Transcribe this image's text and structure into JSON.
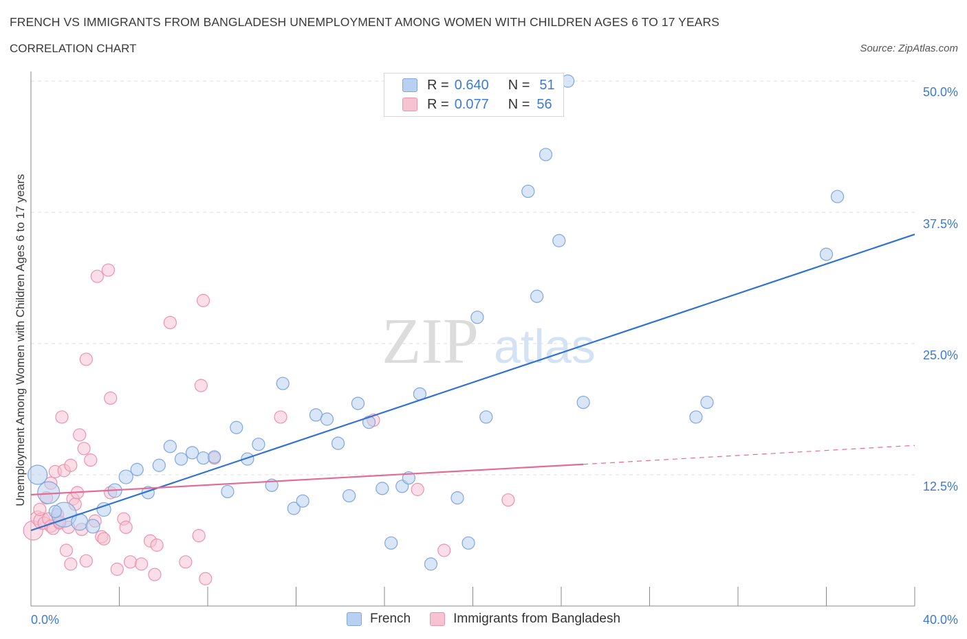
{
  "header": {
    "title": "FRENCH VS IMMIGRANTS FROM BANGLADESH UNEMPLOYMENT AMONG WOMEN WITH CHILDREN AGES 6 TO 17 YEARS",
    "subtitle": "CORRELATION CHART",
    "source": "Source: ZipAtlas.com"
  },
  "watermark": {
    "zip": "ZIP",
    "atlas": "atlas"
  },
  "legend": {
    "french": {
      "r_label": "R =",
      "r_value": "0.640",
      "n_label": "N =",
      "n_value": "51"
    },
    "bangladesh": {
      "r_label": "R =",
      "r_value": "0.077",
      "n_label": "N =",
      "n_value": "56"
    }
  },
  "bottom_legend": {
    "french": "French",
    "bangladesh": "Immigrants from Bangladesh"
  },
  "colors": {
    "french_fill": "#b8d1f3",
    "french_stroke": "#7fa6de",
    "french_line": "#2f72cf",
    "bd_fill": "#f7c3d3",
    "bd_stroke": "#eb93ae",
    "bd_line": "#e56b95",
    "grid": "#dddddd",
    "tick_text": "#3d7bd0"
  },
  "chart_data": {
    "type": "scatter",
    "title": "FRENCH VS IMMIGRANTS FROM BANGLADESH UNEMPLOYMENT AMONG WOMEN WITH CHILDREN AGES 6 TO 17 YEARS",
    "xlabel": "",
    "ylabel": "Unemployment Among Women with Children Ages 6 to 17 years",
    "xlim": [
      0,
      40
    ],
    "ylim": [
      0,
      50
    ],
    "x_tick_labels": [
      "0.0%",
      "40.0%"
    ],
    "y_ticks": [
      12.5,
      25.0,
      37.5,
      50.0
    ],
    "y_tick_labels": [
      "12.5%",
      "25.0%",
      "37.5%",
      "50.0%"
    ],
    "grid": true,
    "legend_position": "top-center",
    "series": [
      {
        "name": "French",
        "r": 0.64,
        "n": 51,
        "trend": {
          "x": [
            0,
            40
          ],
          "y": [
            7.2,
            35.4
          ],
          "dashed_from": null
        },
        "points": [
          [
            0.3,
            12.5,
            14
          ],
          [
            0.8,
            10.8,
            16
          ],
          [
            1.5,
            8.7,
            18
          ],
          [
            2.2,
            8.0,
            12
          ],
          [
            2.8,
            7.6,
            10
          ],
          [
            3.3,
            9.2,
            10
          ],
          [
            3.8,
            11.0,
            10
          ],
          [
            4.3,
            12.3,
            10
          ],
          [
            4.8,
            13.0,
            9
          ],
          [
            5.3,
            10.8,
            9
          ],
          [
            5.8,
            13.4,
            9
          ],
          [
            6.3,
            15.2,
            9
          ],
          [
            6.8,
            14.0,
            9
          ],
          [
            7.3,
            14.6,
            9
          ],
          [
            7.8,
            14.1,
            9
          ],
          [
            8.3,
            14.2,
            9
          ],
          [
            8.9,
            10.9,
            9
          ],
          [
            9.3,
            17.0,
            9
          ],
          [
            9.8,
            14.0,
            9
          ],
          [
            10.3,
            15.4,
            9
          ],
          [
            10.9,
            11.5,
            9
          ],
          [
            11.4,
            21.2,
            9
          ],
          [
            11.9,
            9.3,
            9
          ],
          [
            12.3,
            10.0,
            9
          ],
          [
            12.9,
            18.2,
            9
          ],
          [
            13.4,
            17.8,
            9
          ],
          [
            13.9,
            15.5,
            9
          ],
          [
            14.4,
            10.5,
            9
          ],
          [
            14.8,
            19.3,
            9
          ],
          [
            15.3,
            17.5,
            9
          ],
          [
            15.9,
            11.2,
            9
          ],
          [
            16.3,
            6.0,
            9
          ],
          [
            16.8,
            11.4,
            9
          ],
          [
            17.1,
            12.2,
            9
          ],
          [
            17.6,
            20.2,
            9
          ],
          [
            18.1,
            4.0,
            9
          ],
          [
            19.3,
            10.3,
            9
          ],
          [
            19.8,
            6.0,
            9
          ],
          [
            20.2,
            27.5,
            9
          ],
          [
            20.6,
            18.0,
            9
          ],
          [
            22.5,
            39.5,
            9
          ],
          [
            22.9,
            29.5,
            9
          ],
          [
            23.3,
            43.0,
            9
          ],
          [
            23.9,
            34.8,
            9
          ],
          [
            24.3,
            50.0,
            9
          ],
          [
            25.0,
            19.4,
            9
          ],
          [
            30.1,
            18.0,
            9
          ],
          [
            30.6,
            19.4,
            9
          ],
          [
            36.0,
            33.5,
            9
          ],
          [
            36.5,
            39.0,
            9
          ],
          [
            1.1,
            9.0,
            9
          ]
        ]
      },
      {
        "name": "Immigrants from Bangladesh",
        "r": 0.077,
        "n": 56,
        "trend": {
          "x": [
            0,
            25,
            40
          ],
          "y": [
            10.6,
            13.5,
            15.3
          ],
          "dashed_from": 25
        },
        "points": [
          [
            0.1,
            7.2,
            14
          ],
          [
            0.3,
            8.4,
            10
          ],
          [
            0.5,
            8.1,
            12
          ],
          [
            0.6,
            7.9,
            9
          ],
          [
            0.7,
            10.3,
            9
          ],
          [
            0.8,
            8.3,
            9
          ],
          [
            0.9,
            7.6,
            9
          ],
          [
            1.0,
            7.4,
            9
          ],
          [
            1.1,
            12.8,
            9
          ],
          [
            1.2,
            8.7,
            9
          ],
          [
            1.3,
            7.9,
            9
          ],
          [
            1.4,
            18.0,
            9
          ],
          [
            1.5,
            12.9,
            9
          ],
          [
            1.6,
            5.3,
            9
          ],
          [
            1.7,
            7.5,
            9
          ],
          [
            1.8,
            13.4,
            9
          ],
          [
            1.8,
            4.0,
            9
          ],
          [
            1.9,
            10.2,
            9
          ],
          [
            2.0,
            9.7,
            9
          ],
          [
            2.1,
            10.8,
            9
          ],
          [
            2.2,
            16.3,
            9
          ],
          [
            2.3,
            7.3,
            9
          ],
          [
            2.4,
            15.0,
            9
          ],
          [
            2.5,
            23.5,
            9
          ],
          [
            2.5,
            4.3,
            9
          ],
          [
            2.7,
            13.9,
            9
          ],
          [
            3.0,
            31.4,
            9
          ],
          [
            3.2,
            6.6,
            9
          ],
          [
            3.3,
            6.4,
            9
          ],
          [
            3.5,
            32.0,
            9
          ],
          [
            3.6,
            10.8,
            9
          ],
          [
            3.6,
            19.8,
            9
          ],
          [
            3.9,
            3.5,
            9
          ],
          [
            4.2,
            8.3,
            9
          ],
          [
            4.3,
            7.5,
            9
          ],
          [
            4.5,
            4.2,
            9
          ],
          [
            5.0,
            4.0,
            9
          ],
          [
            5.4,
            6.2,
            9
          ],
          [
            5.6,
            3.0,
            9
          ],
          [
            5.7,
            5.8,
            9
          ],
          [
            6.3,
            27.0,
            9
          ],
          [
            7.0,
            4.2,
            9
          ],
          [
            7.6,
            6.7,
            9
          ],
          [
            7.7,
            21.0,
            9
          ],
          [
            7.8,
            29.1,
            9
          ],
          [
            7.9,
            2.6,
            9
          ],
          [
            8.3,
            14.1,
            9
          ],
          [
            11.3,
            18.0,
            9
          ],
          [
            15.5,
            17.7,
            9
          ],
          [
            17.5,
            11.1,
            9
          ],
          [
            18.7,
            5.3,
            9
          ],
          [
            21.6,
            10.1,
            9
          ],
          [
            0.4,
            9.2,
            9
          ],
          [
            0.9,
            11.7,
            9
          ],
          [
            1.3,
            8.0,
            9
          ],
          [
            2.9,
            8.1,
            9
          ]
        ]
      }
    ]
  }
}
